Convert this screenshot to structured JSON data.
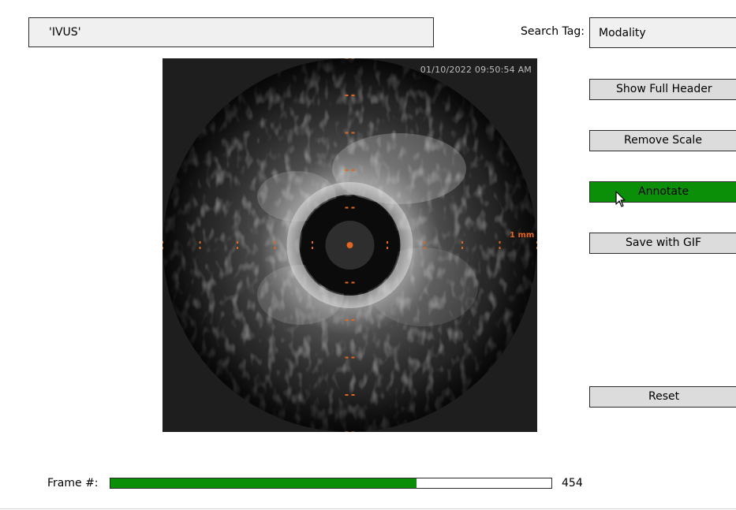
{
  "value_display": {
    "text": "'IVUS'"
  },
  "search": {
    "label": "Search Tag:",
    "value": "Modality"
  },
  "buttons": {
    "show_full_header": "Show Full Header",
    "remove_scale": "Remove Scale",
    "annotate": "Annotate",
    "save_with_gif": "Save with GIF",
    "reset": "Reset"
  },
  "viewer": {
    "timestamp": "01/10/2022 09:50:54 AM",
    "scale_label": "1 mm",
    "marker_color": "#e2661f"
  },
  "frame": {
    "label": "Frame #:",
    "value": "454",
    "fraction": 0.694
  },
  "colors": {
    "active_button": "#0b8f09",
    "slider_fill": "#0b8f09"
  },
  "icons": {
    "cursor": "mouse-pointer-icon"
  }
}
